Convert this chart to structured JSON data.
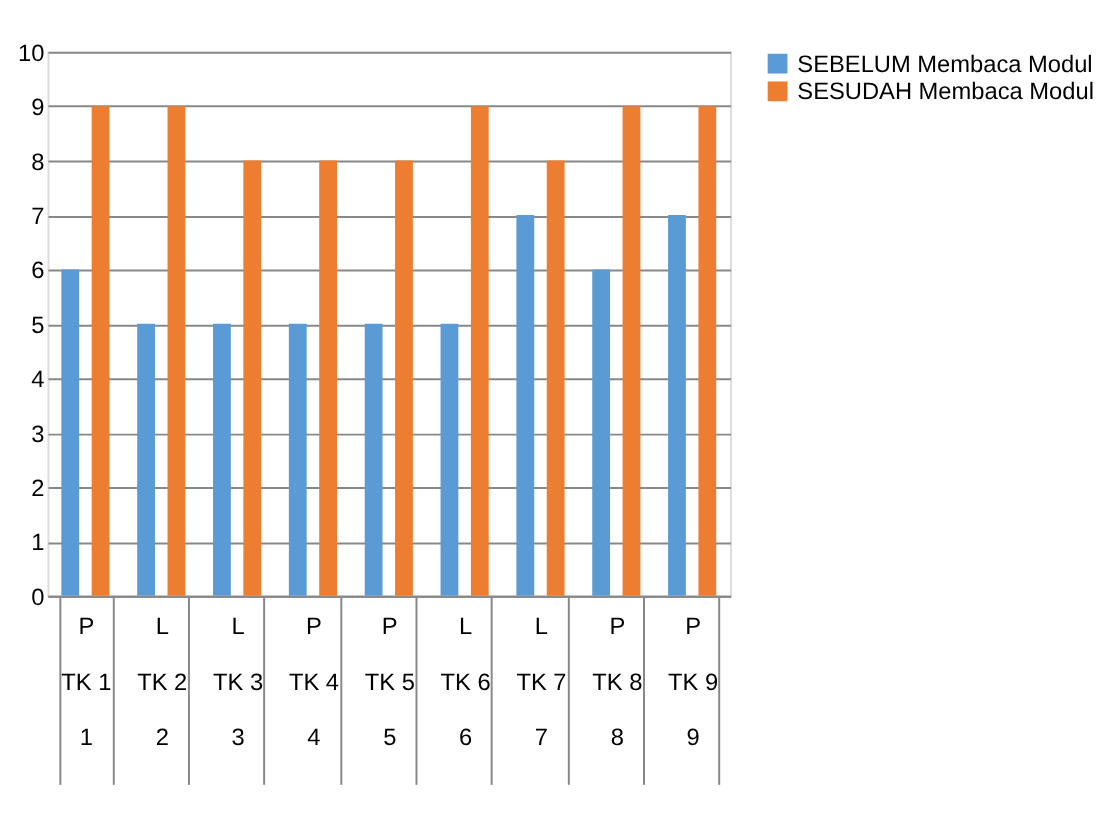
{
  "chart_data": {
    "type": "bar",
    "categories": [
      "P\nTK 1\n1",
      "L\nTK 2\n2",
      "L\nTK 3\n3",
      "P\nTK 4\n4",
      "P\nTK 5\n5",
      "L\nTK 6\n6",
      "L\nTK 7\n7",
      "P\nTK 8\n8",
      "P\nTK 9\n9"
    ],
    "series": [
      {
        "name": "SEBELUM Membaca Modul",
        "color": "#5b9bd5",
        "values": [
          6,
          5,
          5,
          5,
          5,
          5,
          7,
          6,
          7
        ]
      },
      {
        "name": "SESUDAH Membaca Modul",
        "color": "#ed7d31",
        "values": [
          9,
          9,
          8,
          8,
          8,
          9,
          8,
          9,
          9
        ]
      }
    ],
    "ylim": [
      0,
      10
    ],
    "yticks": [
      0,
      1,
      2,
      3,
      4,
      5,
      6,
      7,
      8,
      9,
      10
    ],
    "grid": "y",
    "legend": "right"
  }
}
